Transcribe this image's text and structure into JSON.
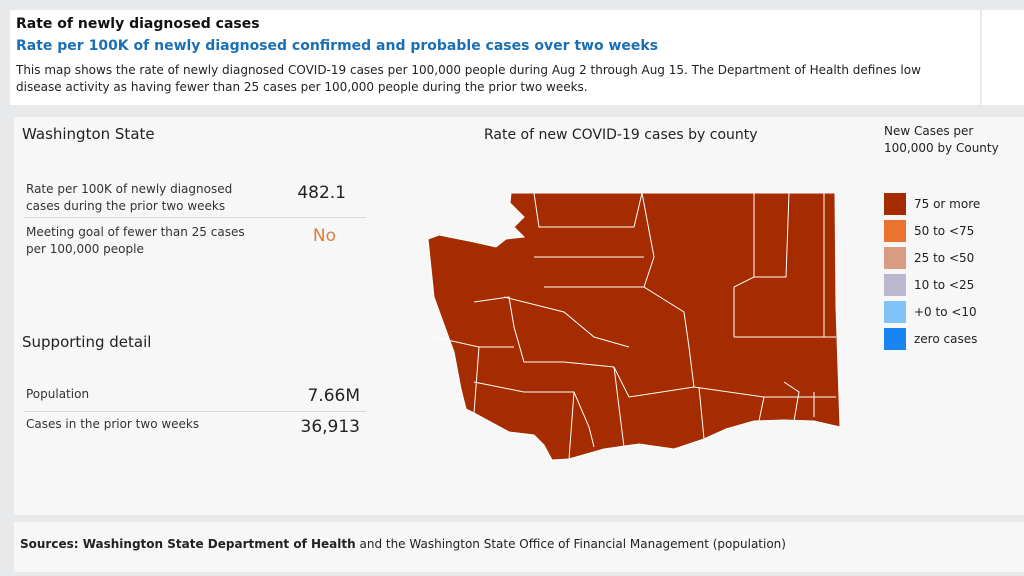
{
  "header": {
    "title": "Rate of newly diagnosed cases",
    "subtitle": "Rate per 100K of newly diagnosed confirmed and probable cases over two weeks",
    "description": "This map shows the rate of newly diagnosed COVID-19 cases per 100,000 people during Aug 2 through Aug 15. The Department of Health defines low disease activity as having fewer than 25 cases per 100,000 people during the prior two weeks."
  },
  "summary": {
    "title": "Washington State",
    "rows": [
      {
        "label": "Rate per 100K of newly diagnosed cases during the prior two weeks",
        "value": "482.1"
      },
      {
        "label": "Meeting goal of fewer than 25 cases per 100,000 people",
        "value": "No"
      }
    ]
  },
  "supporting": {
    "title": "Supporting detail",
    "rows": [
      {
        "label": "Population",
        "value": "7.66M"
      },
      {
        "label": "Cases in the prior two weeks",
        "value": "36,913"
      }
    ]
  },
  "map": {
    "title": "Rate of new COVID-19 cases by county",
    "fill": "#a52b00"
  },
  "legend": {
    "title": "New Cases per 100,000 by County",
    "items": [
      {
        "label": "75 or more",
        "color": "#a52b00"
      },
      {
        "label": "50 to <75",
        "color": "#eb7330"
      },
      {
        "label": "25 to <50",
        "color": "#d89b84"
      },
      {
        "label": "10 to <25",
        "color": "#bab8cf"
      },
      {
        "label": "+0 to <10",
        "color": "#80c1f8"
      },
      {
        "label": "zero cases",
        "color": "#1a84f0"
      }
    ]
  },
  "footer": {
    "source_bold": "Sources: Washington State Department of Health",
    "source_rest": "and the Washington State Office of Financial Management (population)"
  }
}
